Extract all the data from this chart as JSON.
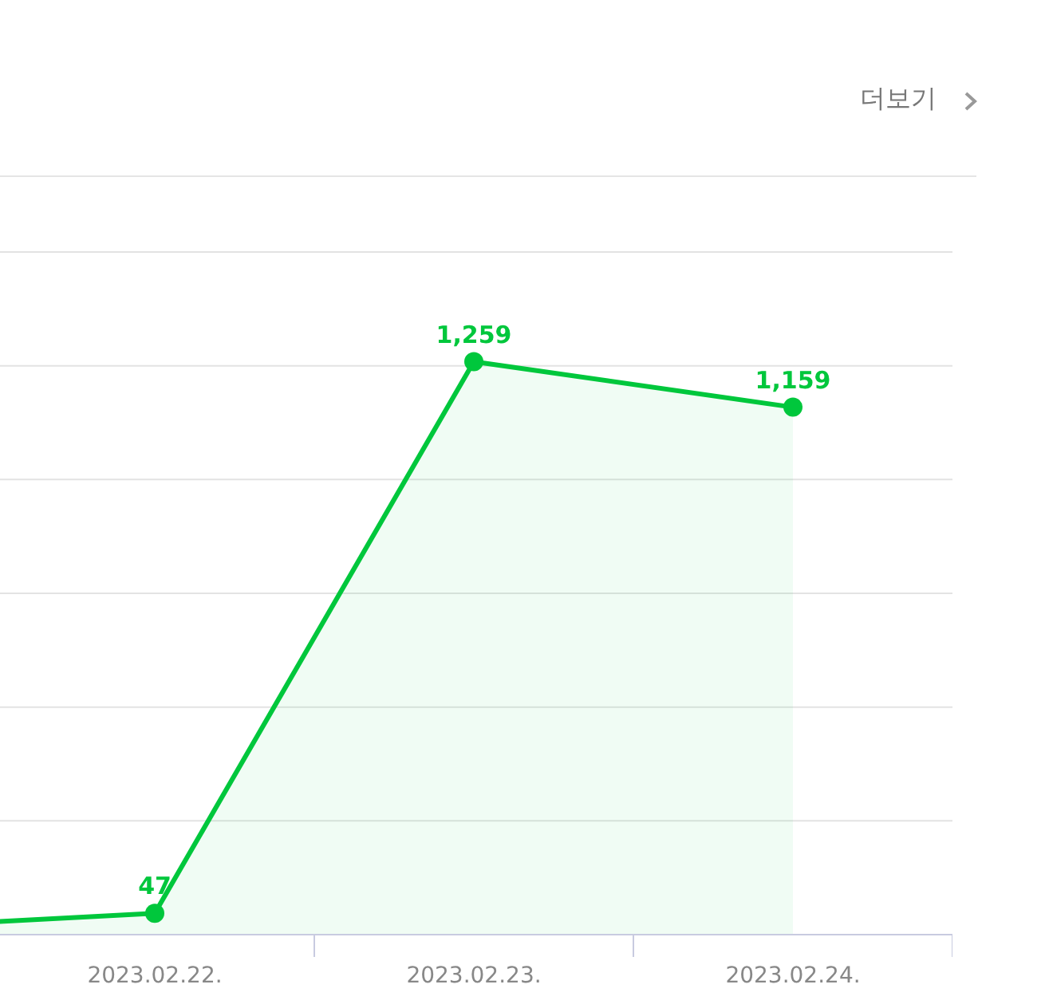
{
  "chart_data": {
    "type": "area",
    "categories": [
      null,
      "2023.02.22.",
      "2023.02.23.",
      "2023.02.24."
    ],
    "values": [
      10,
      47,
      1259,
      1159
    ],
    "value_labels": [
      null,
      "47",
      "1,259",
      "1,159"
    ],
    "color": "#00c73c",
    "ylim": [
      0,
      1500
    ],
    "yticks": [
      {
        "value": 0,
        "label": null
      },
      {
        "value": 250,
        "label": null
      },
      {
        "value": 500,
        "label": null
      },
      {
        "value": 750,
        "label": null
      },
      {
        "value": 1000,
        "label": null
      },
      {
        "value": 1250,
        "label": null
      },
      {
        "value": 1500,
        "label": null
      }
    ],
    "grid": "y",
    "tick_labels": "x",
    "marker": "circle",
    "line_style": "solid",
    "annotations": [
      "더보기"
    ]
  }
}
